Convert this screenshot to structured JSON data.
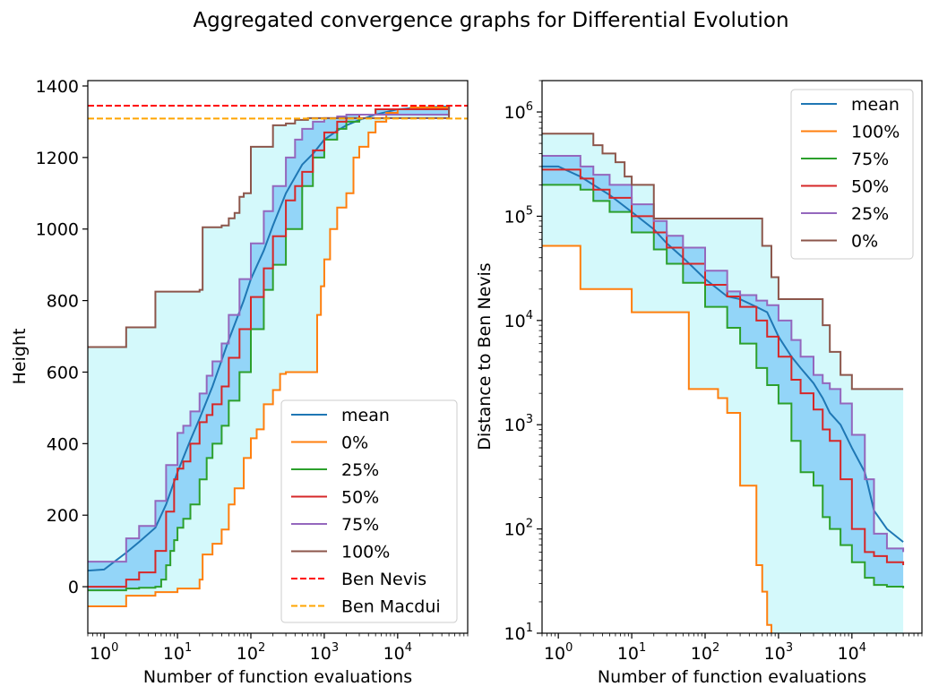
{
  "figure_title": "Aggregated convergence graphs for Differential Evolution",
  "chart_data": [
    {
      "type": "line",
      "panel": "left",
      "xlabel": "Number of function evaluations",
      "ylabel": "Height",
      "xscale": "log",
      "xlim": [
        0.6,
        90000
      ],
      "ylim": [
        -130,
        1415
      ],
      "xticks": [
        1,
        10,
        100,
        1000,
        10000
      ],
      "xtick_labels": [
        {
          "b": "10",
          "e": "0"
        },
        {
          "b": "10",
          "e": "1"
        },
        {
          "b": "10",
          "e": "2"
        },
        {
          "b": "10",
          "e": "3"
        },
        {
          "b": "10",
          "e": "4"
        }
      ],
      "yticks": [
        0,
        200,
        400,
        600,
        800,
        1000,
        1200,
        1400
      ],
      "ytick_labels": [
        "0",
        "200",
        "400",
        "600",
        "800",
        "1000",
        "1200",
        "1400"
      ],
      "grid": false,
      "legend_placement": "lower-right",
      "outer_band": {
        "lower": "0%",
        "upper": "100%",
        "color": "#d4f9fb"
      },
      "inner_band": {
        "lower": "25%",
        "upper": "75%",
        "color": "#93d5f8"
      },
      "series": [
        {
          "name": "mean",
          "color": "#1f77b4",
          "style": "solid",
          "x": [
            0.6,
            1,
            2,
            3,
            5,
            7,
            10,
            15,
            20,
            30,
            50,
            80,
            100,
            150,
            200,
            300,
            500,
            700,
            1000,
            1500,
            2000,
            3000,
            5000,
            8000,
            10000,
            20000,
            50000
          ],
          "y": [
            45,
            48,
            95,
            125,
            165,
            230,
            320,
            410,
            470,
            560,
            690,
            800,
            860,
            940,
            1010,
            1100,
            1180,
            1210,
            1250,
            1275,
            1290,
            1305,
            1320,
            1330,
            1335,
            1340,
            1343
          ]
        },
        {
          "name": "0%",
          "color": "#ff7f0e",
          "style": "step",
          "x": [
            0.6,
            1,
            2,
            5,
            10,
            15,
            20,
            22,
            30,
            40,
            50,
            60,
            70,
            80,
            100,
            120,
            150,
            200,
            250,
            300,
            700,
            800,
            900,
            1000,
            1200,
            1500,
            2000,
            2500,
            3000,
            4000,
            5000,
            7000,
            10000,
            15000,
            50000
          ],
          "y": [
            -55,
            -55,
            -25,
            -15,
            -5,
            -5,
            20,
            90,
            120,
            160,
            230,
            275,
            275,
            360,
            415,
            440,
            510,
            550,
            595,
            600,
            600,
            760,
            840,
            915,
            1000,
            1060,
            1100,
            1200,
            1230,
            1270,
            1300,
            1325,
            1335,
            1340,
            1343
          ]
        },
        {
          "name": "25%",
          "color": "#2ca02c",
          "style": "step",
          "x": [
            0.6,
            1,
            2,
            3,
            5,
            6,
            7,
            8,
            9,
            10,
            12,
            15,
            20,
            25,
            30,
            40,
            50,
            70,
            100,
            150,
            200,
            300,
            500,
            700,
            1000,
            1500,
            2000,
            3000,
            5000,
            50000
          ],
          "y": [
            -10,
            -10,
            -5,
            -3,
            0,
            20,
            60,
            100,
            130,
            165,
            190,
            230,
            300,
            360,
            400,
            450,
            520,
            600,
            720,
            830,
            900,
            1000,
            1120,
            1200,
            1250,
            1280,
            1300,
            1320,
            1335,
            1343
          ]
        },
        {
          "name": "50%",
          "color": "#d62728",
          "style": "step",
          "x": [
            0.6,
            1,
            2,
            3,
            5,
            7,
            9,
            10,
            12,
            15,
            20,
            25,
            30,
            40,
            50,
            70,
            100,
            150,
            200,
            300,
            400,
            500,
            700,
            1000,
            1500,
            2000,
            3000,
            5000,
            50000
          ],
          "y": [
            0,
            0,
            20,
            40,
            100,
            210,
            300,
            330,
            350,
            400,
            460,
            480,
            510,
            560,
            640,
            720,
            810,
            890,
            980,
            1080,
            1120,
            1160,
            1220,
            1270,
            1300,
            1310,
            1320,
            1335,
            1343
          ]
        },
        {
          "name": "75%",
          "color": "#9467bd",
          "style": "step",
          "x": [
            0.6,
            1,
            2,
            3,
            5,
            7,
            10,
            12,
            15,
            20,
            25,
            30,
            40,
            50,
            70,
            100,
            150,
            200,
            300,
            400,
            500,
            700,
            1000,
            1500,
            2000,
            50000
          ],
          "y": [
            70,
            70,
            135,
            170,
            240,
            340,
            430,
            450,
            490,
            540,
            590,
            630,
            680,
            760,
            860,
            960,
            1050,
            1120,
            1200,
            1250,
            1280,
            1300,
            1310,
            1315,
            1320,
            1343
          ]
        },
        {
          "name": "100%",
          "color": "#8c564b",
          "style": "step",
          "x": [
            0.6,
            1,
            2,
            5,
            10,
            15,
            20,
            22,
            25,
            40,
            50,
            60,
            70,
            80,
            100,
            110,
            200,
            300,
            400,
            600,
            800,
            1000,
            2000,
            50000
          ],
          "y": [
            670,
            670,
            725,
            825,
            825,
            825,
            830,
            1005,
            1005,
            1010,
            1030,
            1045,
            1090,
            1100,
            1230,
            1230,
            1290,
            1295,
            1305,
            1310,
            1310,
            1310,
            1310,
            1343
          ]
        },
        {
          "name": "Ben Nevis",
          "color": "#ff0000",
          "style": "dashed",
          "y": 1345
        },
        {
          "name": "Ben Macdui",
          "color": "#ffa500",
          "style": "dashed",
          "y": 1309
        }
      ]
    },
    {
      "type": "line",
      "panel": "right",
      "xlabel": "Number of function evaluations",
      "ylabel": "Distance to Ben Nevis",
      "xscale": "log",
      "yscale": "log",
      "xlim": [
        0.6,
        90000
      ],
      "ylim": [
        10,
        2000000
      ],
      "xticks": [
        1,
        10,
        100,
        1000,
        10000
      ],
      "xtick_labels": [
        {
          "b": "10",
          "e": "0"
        },
        {
          "b": "10",
          "e": "1"
        },
        {
          "b": "10",
          "e": "2"
        },
        {
          "b": "10",
          "e": "3"
        },
        {
          "b": "10",
          "e": "4"
        }
      ],
      "yticks": [
        10,
        100,
        1000,
        10000,
        100000,
        1000000
      ],
      "ytick_labels": [
        {
          "b": "10",
          "e": "1"
        },
        {
          "b": "10",
          "e": "2"
        },
        {
          "b": "10",
          "e": "3"
        },
        {
          "b": "10",
          "e": "4"
        },
        {
          "b": "10",
          "e": "5"
        },
        {
          "b": "10",
          "e": "6"
        }
      ],
      "grid": false,
      "legend_placement": "upper-right",
      "outer_band": {
        "lower": "100%",
        "upper": "0%",
        "color": "#d4f9fb"
      },
      "inner_band": {
        "lower": "75%",
        "upper": "25%",
        "color": "#93d5f8"
      },
      "series": [
        {
          "name": "mean",
          "color": "#1f77b4",
          "style": "solid",
          "x": [
            0.6,
            1,
            2,
            3,
            5,
            10,
            20,
            30,
            50,
            100,
            200,
            300,
            500,
            700,
            1000,
            1500,
            2000,
            3000,
            4000,
            5000,
            7000,
            10000,
            15000,
            20000,
            30000,
            50000
          ],
          "y": [
            300000,
            300000,
            240000,
            200000,
            160000,
            110000,
            75000,
            55000,
            40000,
            25000,
            17000,
            16000,
            13500,
            12000,
            7000,
            4500,
            3500,
            2500,
            1800,
            1300,
            1000,
            600,
            350,
            150,
            100,
            75
          ]
        },
        {
          "name": "100%",
          "color": "#ff7f0e",
          "style": "step",
          "x": [
            0.6,
            1,
            2,
            5,
            10,
            20,
            50,
            60,
            100,
            150,
            200,
            300,
            400,
            500,
            600,
            700,
            800
          ],
          "y": [
            52000,
            52000,
            20000,
            20000,
            12000,
            12000,
            12000,
            2200,
            2200,
            1800,
            1300,
            260,
            260,
            45,
            25,
            12,
            8
          ]
        },
        {
          "name": "75%",
          "color": "#2ca02c",
          "style": "step",
          "x": [
            0.6,
            1,
            2,
            3,
            5,
            10,
            20,
            30,
            50,
            100,
            200,
            300,
            500,
            700,
            1000,
            1500,
            2000,
            3000,
            4000,
            5000,
            7000,
            10000,
            15000,
            20000,
            30000,
            50000
          ],
          "y": [
            200000,
            200000,
            180000,
            140000,
            110000,
            70000,
            48000,
            35000,
            23000,
            13500,
            8500,
            6000,
            3500,
            2400,
            1600,
            700,
            350,
            260,
            130,
            100,
            70,
            48,
            34,
            29,
            28,
            27
          ]
        },
        {
          "name": "50%",
          "color": "#d62728",
          "style": "step",
          "x": [
            0.6,
            1,
            2,
            3,
            5,
            10,
            20,
            30,
            50,
            100,
            200,
            300,
            500,
            700,
            1000,
            1500,
            2000,
            3000,
            4000,
            5000,
            7000,
            10000,
            15000,
            20000,
            30000,
            50000
          ],
          "y": [
            280000,
            280000,
            230000,
            180000,
            150000,
            100000,
            70000,
            50000,
            35000,
            22000,
            17000,
            13500,
            10000,
            7000,
            4500,
            2700,
            2000,
            1400,
            900,
            700,
            300,
            100,
            60,
            55,
            48,
            45
          ]
        },
        {
          "name": "25%",
          "color": "#9467bd",
          "style": "step",
          "x": [
            0.6,
            1,
            2,
            3,
            5,
            10,
            20,
            30,
            50,
            100,
            200,
            300,
            500,
            700,
            1000,
            1500,
            2000,
            3000,
            4000,
            5000,
            7000,
            10000,
            15000,
            20000,
            30000,
            50000
          ],
          "y": [
            380000,
            380000,
            300000,
            250000,
            200000,
            130000,
            90000,
            65000,
            50000,
            30000,
            19000,
            17500,
            15500,
            14000,
            10000,
            6500,
            4500,
            3000,
            2500,
            2200,
            1600,
            800,
            300,
            90,
            65,
            60
          ]
        },
        {
          "name": "0%",
          "color": "#8c564b",
          "style": "step",
          "x": [
            0.6,
            1,
            2,
            3,
            4,
            5,
            6,
            8,
            10,
            20,
            50,
            100,
            500,
            600,
            700,
            800,
            1000,
            2000,
            3000,
            4000,
            5000,
            7000,
            10000,
            20000,
            50000
          ],
          "y": [
            620000,
            620000,
            620000,
            480000,
            400000,
            400000,
            330000,
            240000,
            200000,
            95000,
            95000,
            95000,
            95000,
            52000,
            52000,
            26000,
            16000,
            16000,
            16000,
            9000,
            5000,
            3000,
            2200,
            2200,
            2200
          ]
        }
      ]
    }
  ]
}
